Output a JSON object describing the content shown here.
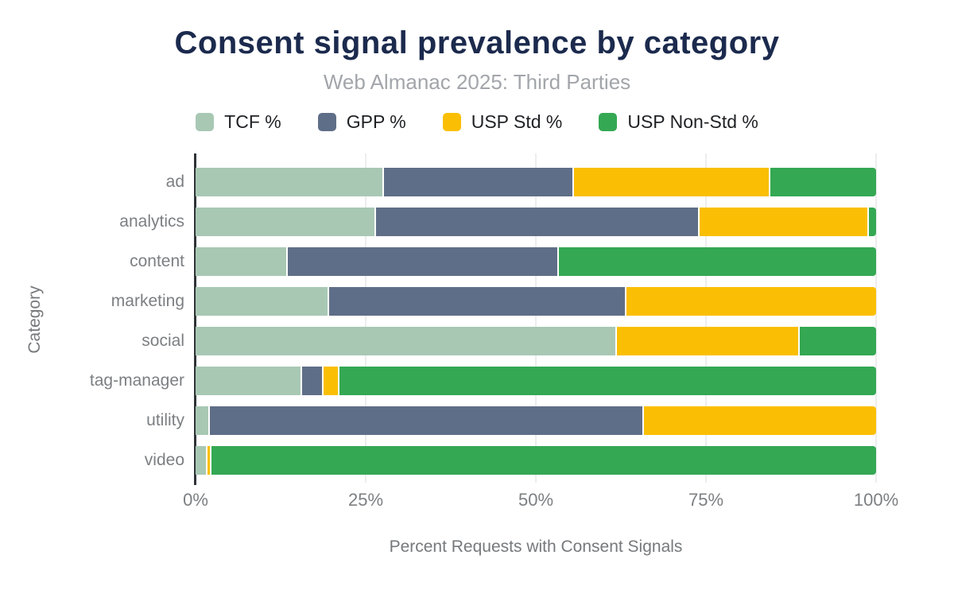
{
  "header": {
    "title": "Consent signal prevalence by category",
    "subtitle": "Web Almanac 2025: Third Parties"
  },
  "legend": {
    "items": [
      {
        "label": "TCF %",
        "color": "#a8c8b4"
      },
      {
        "label": "GPP %",
        "color": "#5f6e88"
      },
      {
        "label": "USP Std %",
        "color": "#fabf04"
      },
      {
        "label": "USP Non-Std %",
        "color": "#34a853"
      }
    ]
  },
  "chart_data": {
    "type": "bar",
    "orientation": "horizontal",
    "stacked": true,
    "title": "Consent signal prevalence by category",
    "subtitle": "Web Almanac 2025: Third Parties",
    "categories": [
      "ad",
      "analytics",
      "content",
      "marketing",
      "social",
      "tag-manager",
      "utility",
      "video"
    ],
    "series": [
      {
        "name": "TCF %",
        "color": "#a8c8b4",
        "values": [
          27.7,
          26.5,
          13.6,
          19.6,
          61.9,
          15.6,
          2.1,
          1.7
        ]
      },
      {
        "name": "GPP %",
        "color": "#5f6e88",
        "values": [
          27.9,
          47.6,
          39.8,
          43.7,
          0.0,
          3.2,
          63.8,
          0.0
        ]
      },
      {
        "name": "USP Std %",
        "color": "#fabf04",
        "values": [
          28.9,
          24.8,
          0.0,
          36.7,
          26.9,
          2.3,
          34.1,
          0.6
        ]
      },
      {
        "name": "USP Non-Std %",
        "color": "#34a853",
        "values": [
          15.5,
          1.1,
          46.6,
          0.0,
          11.2,
          78.9,
          0.0,
          97.7
        ]
      }
    ],
    "xlabel": "Percent Requests with Consent Signals",
    "ylabel": "Category",
    "xticks": [
      "0%",
      "25%",
      "50%",
      "75%",
      "100%"
    ],
    "xlim": [
      0,
      100
    ],
    "grid": true,
    "legend_position": "top"
  },
  "colors": {
    "title": "#1b2a4d",
    "subtitle": "#a2a5aa",
    "axis_text": "#7c7f82",
    "gridline": "#ededed",
    "axis_line": "#303336"
  }
}
